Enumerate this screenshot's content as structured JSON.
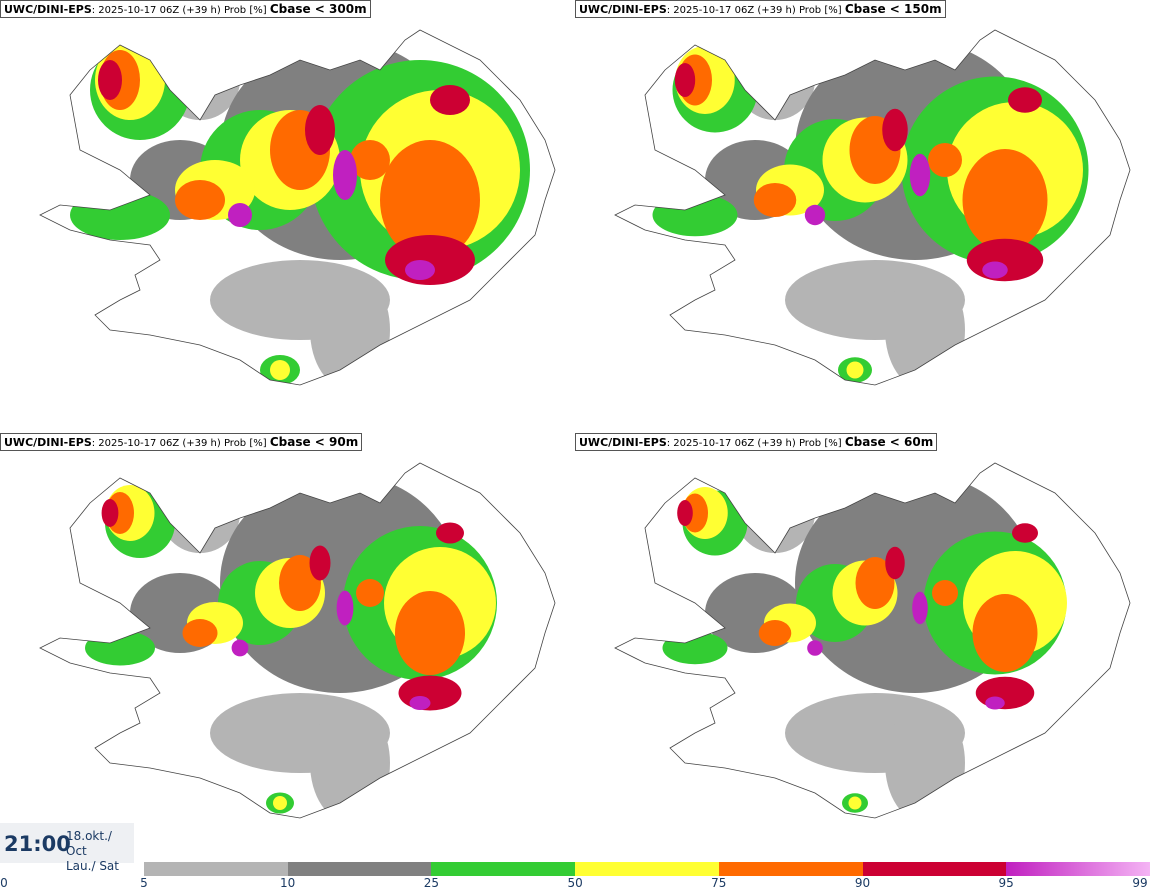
{
  "panels": [
    {
      "model": "UWC/DINI-EPS",
      "info": ": 2025-10-17 06Z (+39 h) Prob [%] ",
      "variable": "Cbase < 300m"
    },
    {
      "model": "UWC/DINI-EPS",
      "info": ": 2025-10-17 06Z (+39 h) Prob [%] ",
      "variable": "Cbase < 150m"
    },
    {
      "model": "UWC/DINI-EPS",
      "info": ": 2025-10-17 06Z (+39 h) Prob [%] ",
      "variable": "Cbase < 90m"
    },
    {
      "model": "UWC/DINI-EPS",
      "info": ": 2025-10-17 06Z (+39 h) Prob [%] ",
      "variable": "Cbase < 60m"
    }
  ],
  "time": {
    "clock": "21:00",
    "date": "18.okt./ Oct",
    "day": "Lau./ Sat"
  },
  "colorbar": {
    "ticks": [
      "0",
      "5",
      "10",
      "25",
      "50",
      "75",
      "90",
      "95",
      "99"
    ],
    "colors": [
      "#b4b4b4",
      "#808080",
      "#33cc33",
      "#ffff33",
      "#ff6a00",
      "#cc0033",
      "#c020c0",
      "#f4b4f4"
    ]
  }
}
